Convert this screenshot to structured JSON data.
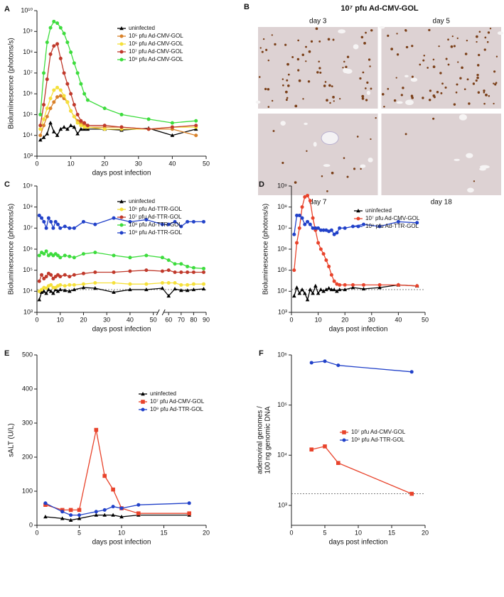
{
  "chart_data": [
    {
      "panel": "A",
      "type": "line",
      "xlabel": "days post infection",
      "ylabel": "Bioluminescence (photons/s)",
      "log_y": true,
      "legend": "upper right",
      "xlim": [
        0,
        50
      ],
      "xticks": [
        0,
        10,
        20,
        30,
        40,
        50
      ],
      "ylim": [
        1000,
        10000000000
      ],
      "yticks": [
        {
          "value": 1000,
          "label": "10³"
        },
        {
          "value": 10000,
          "label": "10⁴"
        },
        {
          "value": 100000,
          "label": "10⁵"
        },
        {
          "value": 1000000,
          "label": "10⁶"
        },
        {
          "value": 10000000,
          "label": "10⁷"
        },
        {
          "value": 100000000,
          "label": "10⁸"
        },
        {
          "value": 1000000000,
          "label": "10⁹"
        },
        {
          "value": 10000000000,
          "label": "10¹⁰"
        }
      ],
      "series": [
        {
          "name": "uninfected",
          "color": "#000000",
          "marker": "triangle",
          "x": [
            1,
            2,
            3,
            4,
            5,
            6,
            7,
            8,
            9,
            10,
            11,
            12,
            13,
            14,
            15,
            20,
            25,
            33,
            40,
            47
          ],
          "values": [
            6000,
            8000,
            12000,
            40000,
            15000,
            10000,
            20000,
            25000,
            20000,
            30000,
            25000,
            12000,
            20000,
            20000,
            20000,
            20000,
            18000,
            22000,
            10000,
            20000
          ]
        },
        {
          "name": "10⁵ pfu Ad-CMV-GOL",
          "color": "#d9822b",
          "marker": "circle",
          "x": [
            1,
            2,
            3,
            4,
            5,
            6,
            7,
            8,
            9,
            10,
            11,
            12,
            13,
            14,
            15,
            20,
            25,
            33,
            40,
            47
          ],
          "values": [
            10000,
            30000,
            80000,
            200000,
            400000,
            700000,
            800000,
            600000,
            400000,
            150000,
            80000,
            50000,
            40000,
            30000,
            25000,
            25000,
            25000,
            20000,
            20000,
            10000
          ]
        },
        {
          "name": "10⁶ pfu Ad-CMV-GOL",
          "color": "#f5e03a",
          "marker": "circle",
          "x": [
            1,
            2,
            3,
            4,
            5,
            6,
            7,
            8,
            9,
            10,
            11,
            12,
            13,
            14,
            15,
            20,
            25,
            33,
            40,
            47
          ],
          "values": [
            20000,
            60000,
            200000,
            600000,
            1500000,
            2000000,
            1500000,
            800000,
            400000,
            150000,
            80000,
            40000,
            30000,
            25000,
            25000,
            20000,
            20000,
            20000,
            25000,
            25000
          ]
        },
        {
          "name": "10⁷ pfu Ad-CMV-GOL",
          "color": "#c0392b",
          "marker": "circle",
          "x": [
            1,
            2,
            3,
            4,
            5,
            6,
            7,
            8,
            9,
            10,
            11,
            12,
            13,
            14,
            15,
            20,
            25,
            33,
            40,
            47
          ],
          "values": [
            30000,
            300000,
            5000000,
            80000000,
            200000000,
            250000000,
            50000000,
            10000000,
            3000000,
            1000000,
            300000,
            100000,
            50000,
            40000,
            30000,
            30000,
            25000,
            20000,
            25000,
            30000
          ]
        },
        {
          "name": "10⁸ pfu Ad-CMV-GOL",
          "color": "#3ddc3d",
          "marker": "circle",
          "x": [
            1,
            2,
            3,
            4,
            5,
            6,
            7,
            8,
            9,
            10,
            11,
            12,
            13,
            14,
            15,
            20,
            25,
            33,
            40,
            47
          ],
          "values": [
            100000,
            10000000,
            300000000,
            1500000000,
            3000000000,
            2500000000,
            1500000000,
            800000000,
            300000000,
            100000000,
            30000000,
            10000000,
            3000000,
            1000000,
            500000,
            200000,
            100000,
            60000,
            40000,
            50000
          ]
        }
      ]
    },
    {
      "panel": "B",
      "type": "image",
      "title": "10⁷ pfu Ad-CMV-GOL",
      "images": [
        "day 3",
        "day 5",
        "day 7",
        "day 18"
      ]
    },
    {
      "panel": "C",
      "type": "line",
      "xlabel": "days post infection",
      "ylabel": "Bioluminescence (photons/s)",
      "log_y": true,
      "legend": "upper right",
      "reference_line": 12000,
      "xlim": [
        0,
        90
      ],
      "xsegments": [
        [
          0,
          52
        ],
        [
          56,
          90
        ]
      ],
      "xticks": [
        0,
        10,
        20,
        30,
        40,
        50,
        60,
        70,
        80,
        90
      ],
      "ylim": [
        1000,
        1000000000
      ],
      "yticks": [
        {
          "value": 1000,
          "label": "10³"
        },
        {
          "value": 10000,
          "label": "10⁴"
        },
        {
          "value": 100000,
          "label": "10⁵"
        },
        {
          "value": 1000000,
          "label": "10⁶"
        },
        {
          "value": 10000000,
          "label": "10⁷"
        },
        {
          "value": 100000000,
          "label": "10⁸"
        },
        {
          "value": 1000000000,
          "label": "10⁹"
        }
      ],
      "series": [
        {
          "name": "uninfected",
          "color": "#000000",
          "marker": "triangle",
          "x": [
            1,
            2,
            3,
            4,
            5,
            6,
            7,
            8,
            9,
            10,
            12,
            14,
            16,
            20,
            25,
            33,
            40,
            47,
            55,
            60,
            65,
            70,
            75,
            80,
            88
          ],
          "values": [
            4000,
            9000,
            10000,
            8000,
            12000,
            10000,
            8000,
            12000,
            10000,
            12000,
            11000,
            10000,
            12000,
            15000,
            14000,
            9000,
            12000,
            12000,
            14000,
            6000,
            13000,
            11000,
            11000,
            12000,
            13000
          ]
        },
        {
          "name": "10⁶ pfu Ad-TTR-GOL",
          "color": "#f5e03a",
          "marker": "circle",
          "x": [
            1,
            2,
            3,
            4,
            5,
            6,
            7,
            8,
            9,
            10,
            12,
            14,
            16,
            20,
            25,
            33,
            40,
            47,
            55,
            60,
            65,
            70,
            75,
            80,
            88
          ],
          "values": [
            10000,
            12000,
            15000,
            14000,
            18000,
            20000,
            15000,
            15000,
            18000,
            20000,
            18000,
            20000,
            20000,
            22000,
            25000,
            25000,
            22000,
            22000,
            25000,
            25000,
            25000,
            20000,
            20000,
            22000,
            22000
          ]
        },
        {
          "name": "10⁷ pfu Ad-TTR-GOL",
          "color": "#c0392b",
          "marker": "circle",
          "x": [
            1,
            2,
            3,
            4,
            5,
            6,
            7,
            8,
            9,
            10,
            12,
            14,
            16,
            20,
            25,
            33,
            40,
            47,
            55,
            60,
            65,
            70,
            75,
            80,
            88
          ],
          "values": [
            30000,
            60000,
            40000,
            50000,
            70000,
            60000,
            40000,
            50000,
            60000,
            50000,
            60000,
            50000,
            60000,
            70000,
            80000,
            80000,
            90000,
            100000,
            90000,
            100000,
            80000,
            80000,
            80000,
            80000,
            80000
          ]
        },
        {
          "name": "10⁸ pfu Ad-TTR-GOL",
          "color": "#3ddc3d",
          "marker": "circle",
          "x": [
            1,
            2,
            3,
            4,
            5,
            6,
            7,
            8,
            9,
            10,
            12,
            14,
            16,
            20,
            25,
            33,
            40,
            47,
            55,
            60,
            65,
            70,
            75,
            80,
            88
          ],
          "values": [
            500000,
            700000,
            600000,
            800000,
            500000,
            600000,
            500000,
            600000,
            500000,
            400000,
            500000,
            450000,
            400000,
            600000,
            700000,
            500000,
            400000,
            500000,
            400000,
            300000,
            200000,
            200000,
            150000,
            130000,
            120000
          ]
        },
        {
          "name": "10⁹ pfu Ad-TTR-GOL",
          "color": "#2141c9",
          "marker": "circle",
          "x": [
            1,
            2,
            3,
            4,
            5,
            6,
            7,
            8,
            9,
            10,
            12,
            14,
            16,
            20,
            25,
            33,
            40,
            47,
            55,
            60,
            65,
            70,
            75,
            80,
            88
          ],
          "values": [
            40000000,
            30000000,
            20000000,
            10000000,
            30000000,
            20000000,
            10000000,
            20000000,
            15000000,
            10000000,
            12000000,
            10000000,
            10000000,
            20000000,
            15000000,
            30000000,
            20000000,
            25000000,
            15000000,
            15000000,
            20000000,
            12000000,
            20000000,
            20000000,
            20000000
          ]
        }
      ]
    },
    {
      "panel": "D",
      "type": "line",
      "xlabel": "days post infection",
      "ylabel": "Bioluminescence (photons/s)",
      "log_y": true,
      "legend": "upper right",
      "reference_line": 12000,
      "xlim": [
        0,
        50
      ],
      "xticks": [
        0,
        10,
        20,
        30,
        40,
        50
      ],
      "ylim": [
        1000,
        1000000000
      ],
      "yticks": [
        {
          "value": 1000,
          "label": "10³"
        },
        {
          "value": 10000,
          "label": "10⁴"
        },
        {
          "value": 100000,
          "label": "10⁵"
        },
        {
          "value": 1000000,
          "label": "10⁶"
        },
        {
          "value": 10000000,
          "label": "10⁷"
        },
        {
          "value": 100000000,
          "label": "10⁸"
        },
        {
          "value": 1000000000,
          "label": "10⁹"
        }
      ],
      "series": [
        {
          "name": "uninfected",
          "color": "#000000",
          "marker": "triangle",
          "x": [
            1,
            2,
            3,
            4,
            5,
            6,
            7,
            8,
            9,
            10,
            11,
            12,
            13,
            14,
            15,
            16,
            17,
            18,
            20,
            23,
            27,
            33,
            40,
            47
          ],
          "values": [
            6000,
            15000,
            8000,
            12000,
            8000,
            4000,
            12000,
            8000,
            18000,
            8000,
            12000,
            10000,
            12000,
            14000,
            12000,
            12000,
            10000,
            12000,
            12000,
            15000,
            13000,
            15000,
            20000,
            18000
          ]
        },
        {
          "name": "10⁷ pfu Ad-CMV-GOL",
          "color": "#e8432b",
          "marker": "circle",
          "x": [
            1,
            2,
            3,
            4,
            5,
            6,
            7,
            8,
            9,
            10,
            11,
            12,
            13,
            14,
            15,
            16,
            17,
            18,
            20,
            23,
            27,
            33,
            40,
            47
          ],
          "values": [
            100000,
            2000000,
            10000000,
            100000000,
            300000000,
            350000000,
            200000000,
            30000000,
            8000000,
            2000000,
            1000000,
            600000,
            300000,
            150000,
            60000,
            30000,
            22000,
            20000,
            20000,
            20000,
            20000,
            20000,
            20000,
            18000
          ]
        },
        {
          "name": "10⁹ pfu Ad-TTR-GOL",
          "color": "#2141c9",
          "marker": "circle",
          "x": [
            1,
            2,
            3,
            4,
            5,
            6,
            7,
            8,
            9,
            10,
            11,
            12,
            13,
            14,
            15,
            16,
            17,
            18,
            20,
            23,
            27,
            33,
            40,
            47
          ],
          "values": [
            5000000,
            40000000,
            40000000,
            30000000,
            15000000,
            20000000,
            15000000,
            10000000,
            10000000,
            10000000,
            8000000,
            8000000,
            8000000,
            7000000,
            8000000,
            5000000,
            6000000,
            10000000,
            10000000,
            12000000,
            15000000,
            12000000,
            20000000,
            18000000
          ]
        }
      ]
    },
    {
      "panel": "E",
      "type": "line",
      "xlabel": "days post infection",
      "ylabel": "sALT (U/L)",
      "log_y": false,
      "legend": "upper right",
      "xlim": [
        0,
        20
      ],
      "xticks": [
        0,
        5,
        10,
        15,
        20
      ],
      "ylim": [
        0,
        500
      ],
      "yticks": [
        0,
        100,
        200,
        300,
        400,
        500
      ],
      "series": [
        {
          "name": "uninfected",
          "color": "#000000",
          "marker": "triangle",
          "x": [
            1,
            3,
            4,
            5,
            7,
            8,
            9,
            10,
            12,
            18
          ],
          "values": [
            25,
            20,
            15,
            20,
            30,
            30,
            30,
            25,
            30,
            30
          ]
        },
        {
          "name": "10⁷ pfu Ad-CMV-GOL",
          "color": "#e8432b",
          "marker": "square",
          "x": [
            1,
            3,
            4,
            5,
            7,
            8,
            9,
            10,
            12,
            18
          ],
          "values": [
            60,
            45,
            45,
            45,
            280,
            145,
            105,
            50,
            35,
            35
          ]
        },
        {
          "name": "10⁹ pfu Ad-TTR-GOL",
          "color": "#2141c9",
          "marker": "circle",
          "x": [
            1,
            3,
            4,
            5,
            7,
            8,
            9,
            10,
            12,
            18
          ],
          "values": [
            65,
            40,
            30,
            30,
            40,
            45,
            55,
            50,
            60,
            65
          ]
        }
      ]
    },
    {
      "panel": "F",
      "type": "line",
      "xlabel": "days post infection",
      "ylabel": [
        "adenoviral genomes /",
        "100 ng genomic DNA"
      ],
      "log_y": true,
      "legend": "center right",
      "reference_line": 1700,
      "xlim": [
        0,
        20
      ],
      "xticks": [
        0,
        5,
        10,
        15,
        20
      ],
      "ylim": [
        400,
        1000000
      ],
      "yticks": [
        {
          "value": 1000,
          "label": "10³"
        },
        {
          "value": 10000,
          "label": "10⁴"
        },
        {
          "value": 100000,
          "label": "10⁵"
        },
        {
          "value": 1000000,
          "label": "10⁶"
        }
      ],
      "series": [
        {
          "name": "10⁷ pfu Ad-CMV-GOL",
          "color": "#e8432b",
          "marker": "square",
          "x": [
            3,
            5,
            7,
            18
          ],
          "values": [
            13000,
            15000,
            7000,
            1700
          ]
        },
        {
          "name": "10⁹ pfu Ad-TTR-GOL",
          "color": "#2141c9",
          "marker": "circle",
          "x": [
            3,
            5,
            7,
            18
          ],
          "values": [
            700000,
            750000,
            620000,
            460000
          ]
        }
      ]
    }
  ]
}
